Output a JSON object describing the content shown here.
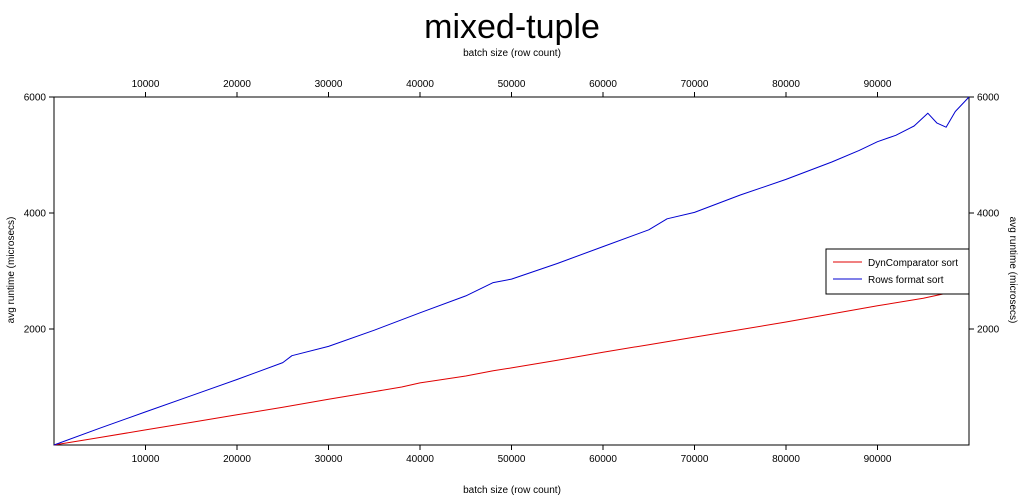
{
  "chart_data": {
    "type": "line",
    "title": "mixed-tuple",
    "xlabel": "batch size (row count)",
    "xlabel_top": "batch size (row count)",
    "ylabel": "avg runtime (microsecs)",
    "ylabel_right": "avg runtime (microsecs)",
    "xlim": [
      0,
      100000
    ],
    "ylim": [
      0,
      6000
    ],
    "xticks": [
      10000,
      20000,
      30000,
      40000,
      50000,
      60000,
      70000,
      80000,
      90000
    ],
    "yticks": [
      2000,
      4000,
      6000
    ],
    "grid": false,
    "legend_position": "right",
    "series": [
      {
        "name": "DynComparator sort",
        "color": "#e00000",
        "x": [
          0,
          5000,
          10000,
          15000,
          20000,
          25000,
          30000,
          35000,
          38000,
          40000,
          45000,
          48000,
          50000,
          55000,
          60000,
          65000,
          70000,
          75000,
          80000,
          85000,
          90000,
          95000,
          100000
        ],
        "y": [
          0,
          130,
          260,
          390,
          520,
          650,
          790,
          920,
          1000,
          1070,
          1190,
          1280,
          1330,
          1460,
          1600,
          1730,
          1860,
          1990,
          2120,
          2260,
          2400,
          2530,
          2700
        ]
      },
      {
        "name": "Rows format sort",
        "color": "#0000d0",
        "x": [
          0,
          5000,
          10000,
          15000,
          20000,
          25000,
          26000,
          30000,
          35000,
          40000,
          45000,
          48000,
          50000,
          55000,
          60000,
          65000,
          67000,
          70000,
          75000,
          80000,
          85000,
          88000,
          90000,
          92000,
          94000,
          95500,
          96500,
          97500,
          98500,
          100000
        ],
        "y": [
          0,
          290,
          570,
          850,
          1130,
          1420,
          1540,
          1700,
          1980,
          2280,
          2570,
          2800,
          2860,
          3130,
          3420,
          3710,
          3900,
          4010,
          4310,
          4580,
          4880,
          5080,
          5230,
          5340,
          5500,
          5720,
          5550,
          5480,
          5750,
          6000
        ]
      }
    ]
  }
}
